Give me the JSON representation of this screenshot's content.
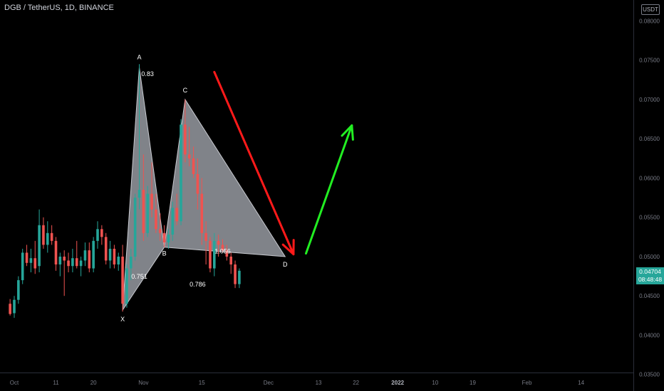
{
  "header": {
    "title": "DGB / TetherUS, 1D, BINANCE",
    "currency_button": "USDT"
  },
  "last_price": {
    "value": "0.04704",
    "countdown": "08:48:48"
  },
  "colors": {
    "up": "#26a69a",
    "down": "#ef5350",
    "pattern_fill": "#b2b5be",
    "bear_arrow": "#ff1a1a",
    "bull_arrow": "#22ee22"
  },
  "chart_data": {
    "type": "candlestick",
    "title": "DGB / TetherUS, 1D, BINANCE",
    "ylim": [
      0.0338,
      0.0823
    ],
    "y_ticks": [
      "0.08000",
      "0.07500",
      "0.07000",
      "0.06500",
      "0.06000",
      "0.05500",
      "0.05000",
      "0.04500",
      "0.04000",
      "0.03500"
    ],
    "x_ticks": [
      {
        "label": "Oct",
        "day": 0
      },
      {
        "label": "11",
        "day": 10
      },
      {
        "label": "20",
        "day": 19
      },
      {
        "label": "Nov",
        "day": 31
      },
      {
        "label": "15",
        "day": 45
      },
      {
        "label": "Dec",
        "day": 61
      },
      {
        "label": "13",
        "day": 73
      },
      {
        "label": "22",
        "day": 82
      },
      {
        "label": "2022",
        "day": 92
      },
      {
        "label": "10",
        "day": 101
      },
      {
        "label": "19",
        "day": 110
      },
      {
        "label": "Feb",
        "day": 123
      },
      {
        "label": "14",
        "day": 136
      }
    ],
    "candles": [
      [
        -1,
        0.044,
        0.0446,
        0.0425,
        0.0427
      ],
      [
        0,
        0.0428,
        0.045,
        0.0422,
        0.0445
      ],
      [
        1,
        0.0445,
        0.0475,
        0.044,
        0.047
      ],
      [
        2,
        0.047,
        0.051,
        0.0465,
        0.0505
      ],
      [
        3,
        0.0505,
        0.0515,
        0.0488,
        0.0492
      ],
      [
        4,
        0.0492,
        0.051,
        0.048,
        0.0498
      ],
      [
        5,
        0.0498,
        0.052,
        0.0478,
        0.0485
      ],
      [
        6,
        0.0488,
        0.056,
        0.048,
        0.054
      ],
      [
        7,
        0.054,
        0.055,
        0.051,
        0.0515
      ],
      [
        8,
        0.0515,
        0.0545,
        0.0505,
        0.053
      ],
      [
        9,
        0.053,
        0.054,
        0.0515,
        0.052
      ],
      [
        10,
        0.052,
        0.0525,
        0.0482,
        0.049
      ],
      [
        11,
        0.049,
        0.0505,
        0.0475,
        0.05
      ],
      [
        12,
        0.05,
        0.0508,
        0.045,
        0.0495
      ],
      [
        13,
        0.0495,
        0.0505,
        0.048,
        0.0488
      ],
      [
        14,
        0.0488,
        0.051,
        0.048,
        0.0498
      ],
      [
        15,
        0.0498,
        0.052,
        0.0485,
        0.0488
      ],
      [
        16,
        0.0488,
        0.05,
        0.0475,
        0.0495
      ],
      [
        17,
        0.0495,
        0.0518,
        0.0488,
        0.0508
      ],
      [
        18,
        0.0508,
        0.0518,
        0.048,
        0.0485
      ],
      [
        19,
        0.0485,
        0.0525,
        0.048,
        0.052
      ],
      [
        20,
        0.052,
        0.0545,
        0.051,
        0.0535
      ],
      [
        21,
        0.0535,
        0.054,
        0.0515,
        0.0525
      ],
      [
        22,
        0.0525,
        0.053,
        0.049,
        0.0495
      ],
      [
        23,
        0.0495,
        0.052,
        0.0485,
        0.051
      ],
      [
        24,
        0.051,
        0.0515,
        0.0485,
        0.049
      ],
      [
        25,
        0.049,
        0.0505,
        0.0482,
        0.05
      ],
      [
        26,
        0.05,
        0.0515,
        0.043,
        0.044
      ],
      [
        27,
        0.044,
        0.049,
        0.0435,
        0.0485
      ],
      [
        28,
        0.0485,
        0.051,
        0.047,
        0.05
      ],
      [
        29,
        0.05,
        0.058,
        0.0495,
        0.0575
      ],
      [
        30,
        0.0575,
        0.0745,
        0.056,
        0.0585
      ],
      [
        31,
        0.0585,
        0.063,
        0.052,
        0.053
      ],
      [
        32,
        0.053,
        0.059,
        0.0525,
        0.058
      ],
      [
        33,
        0.058,
        0.062,
        0.055,
        0.056
      ],
      [
        34,
        0.056,
        0.058,
        0.053,
        0.0535
      ],
      [
        35,
        0.0535,
        0.0555,
        0.052,
        0.053
      ],
      [
        36,
        0.053,
        0.054,
        0.0512,
        0.0518
      ],
      [
        37,
        0.0518,
        0.0535,
        0.051,
        0.0528
      ],
      [
        38,
        0.0528,
        0.057,
        0.052,
        0.0562
      ],
      [
        39,
        0.0562,
        0.058,
        0.054,
        0.0545
      ],
      [
        40,
        0.0545,
        0.0675,
        0.054,
        0.0668
      ],
      [
        41,
        0.0668,
        0.07,
        0.062,
        0.063
      ],
      [
        42,
        0.063,
        0.0665,
        0.0615,
        0.0625
      ],
      [
        43,
        0.0625,
        0.064,
        0.06,
        0.0605
      ],
      [
        44,
        0.0605,
        0.0625,
        0.056,
        0.058
      ],
      [
        45,
        0.058,
        0.06,
        0.0515,
        0.053
      ],
      [
        46,
        0.053,
        0.0545,
        0.049,
        0.052
      ],
      [
        47,
        0.052,
        0.0525,
        0.048,
        0.0485
      ],
      [
        48,
        0.0485,
        0.053,
        0.0475,
        0.052
      ],
      [
        49,
        0.052,
        0.0528,
        0.05,
        0.0515
      ],
      [
        50,
        0.0515,
        0.0522,
        0.0505,
        0.0508
      ],
      [
        51,
        0.0508,
        0.0515,
        0.0495,
        0.05
      ],
      [
        52,
        0.05,
        0.0505,
        0.0478,
        0.049
      ],
      [
        53,
        0.049,
        0.0495,
        0.046,
        0.0465
      ],
      [
        54,
        0.0465,
        0.0485,
        0.046,
        0.0482
      ]
    ],
    "harmonic_pattern": {
      "points": [
        {
          "label": "X",
          "day": 26,
          "price": 0.0432
        },
        {
          "label": "A",
          "day": 30,
          "price": 0.0741
        },
        {
          "label": "B",
          "day": 36,
          "price": 0.0512
        },
        {
          "label": "C",
          "day": 41,
          "price": 0.07
        },
        {
          "label": "D",
          "day": 65,
          "price": 0.05
        }
      ],
      "ratios": [
        {
          "text": "0.83",
          "day": 32,
          "price": 0.073
        },
        {
          "text": "0.751",
          "day": 30,
          "price": 0.0472
        },
        {
          "text": "0.786",
          "day": 44,
          "price": 0.0462
        },
        {
          "text": "1.056",
          "day": 50,
          "price": 0.0504
        }
      ]
    },
    "annotations": [
      {
        "type": "arrow",
        "color": "red",
        "from": {
          "day": 48,
          "price": 0.0735
        },
        "to": {
          "day": 67,
          "price": 0.0503
        }
      },
      {
        "type": "arrow",
        "color": "green",
        "from": {
          "day": 70,
          "price": 0.0504
        },
        "to": {
          "day": 81,
          "price": 0.0667
        }
      }
    ]
  }
}
